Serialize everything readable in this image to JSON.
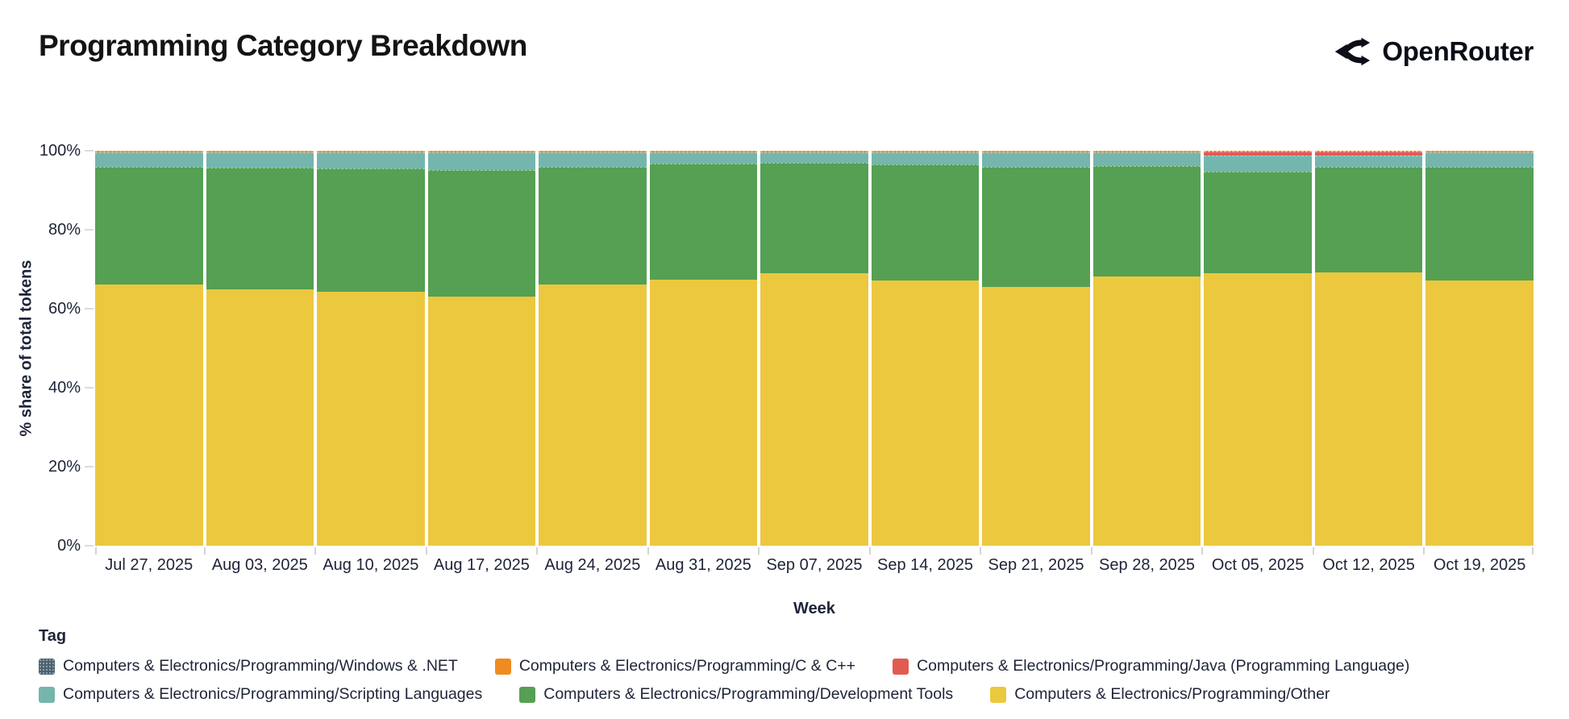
{
  "header": {
    "title": "Programming Category Breakdown",
    "brand": "OpenRouter"
  },
  "chart_data": {
    "type": "bar",
    "variant": "stacked-100-percent",
    "title": "Programming Category Breakdown",
    "xlabel": "Week",
    "ylabel": "% share of total tokens",
    "legend_title": "Tag",
    "ylim": [
      0,
      100
    ],
    "ytick_values": [
      0,
      20,
      40,
      60,
      80,
      100
    ],
    "ytick_labels": [
      "0%",
      "20%",
      "40%",
      "60%",
      "80%",
      "100%"
    ],
    "grid": false,
    "legend_position": "bottom",
    "categories": [
      "Jul 27, 2025",
      "Aug 03, 2025",
      "Aug 10, 2025",
      "Aug 17, 2025",
      "Aug 24, 2025",
      "Aug 31, 2025",
      "Sep 07, 2025",
      "Sep 14, 2025",
      "Sep 21, 2025",
      "Sep 28, 2025",
      "Oct 05, 2025",
      "Oct 12, 2025",
      "Oct 19, 2025"
    ],
    "series": [
      {
        "name": "Computers & Electronics/Programming/Other",
        "color": "#ECC83E",
        "values": [
          66.1,
          64.9,
          64.2,
          63.0,
          66.2,
          67.3,
          69.0,
          67.2,
          65.5,
          68.1,
          69.0,
          69.2,
          67.1
        ]
      },
      {
        "name": "Computers & Electronics/Programming/Development Tools",
        "color": "#55A053",
        "values": [
          29.8,
          30.8,
          31.3,
          32.2,
          29.8,
          29.4,
          28.0,
          29.4,
          30.5,
          28.0,
          25.6,
          26.8,
          28.9
        ]
      },
      {
        "name": "Computers & Electronics/Programming/Scripting Languages",
        "color": "#74B6AD",
        "values": [
          3.7,
          3.9,
          4.1,
          4.4,
          3.6,
          2.9,
          2.6,
          3.0,
          3.6,
          3.5,
          4.2,
          2.8,
          3.6
        ]
      },
      {
        "name": "Computers & Electronics/Programming/Java (Programming Language)",
        "color": "#E25B52",
        "values": [
          0,
          0,
          0,
          0,
          0,
          0,
          0,
          0,
          0,
          0,
          1.0,
          1.0,
          0
        ]
      },
      {
        "name": "Computers & Electronics/Programming/C & C++",
        "color": "#EF8B20",
        "values": [
          0.4,
          0.4,
          0.4,
          0.4,
          0.4,
          0.4,
          0.4,
          0.4,
          0.4,
          0.4,
          0.2,
          0.2,
          0.4
        ]
      },
      {
        "name": "Computers & Electronics/Programming/Windows & .NET",
        "color": "#4B636F",
        "pattern": "dots",
        "values": [
          0,
          0,
          0,
          0,
          0,
          0,
          0,
          0,
          0,
          0,
          0,
          0,
          0
        ]
      }
    ]
  }
}
